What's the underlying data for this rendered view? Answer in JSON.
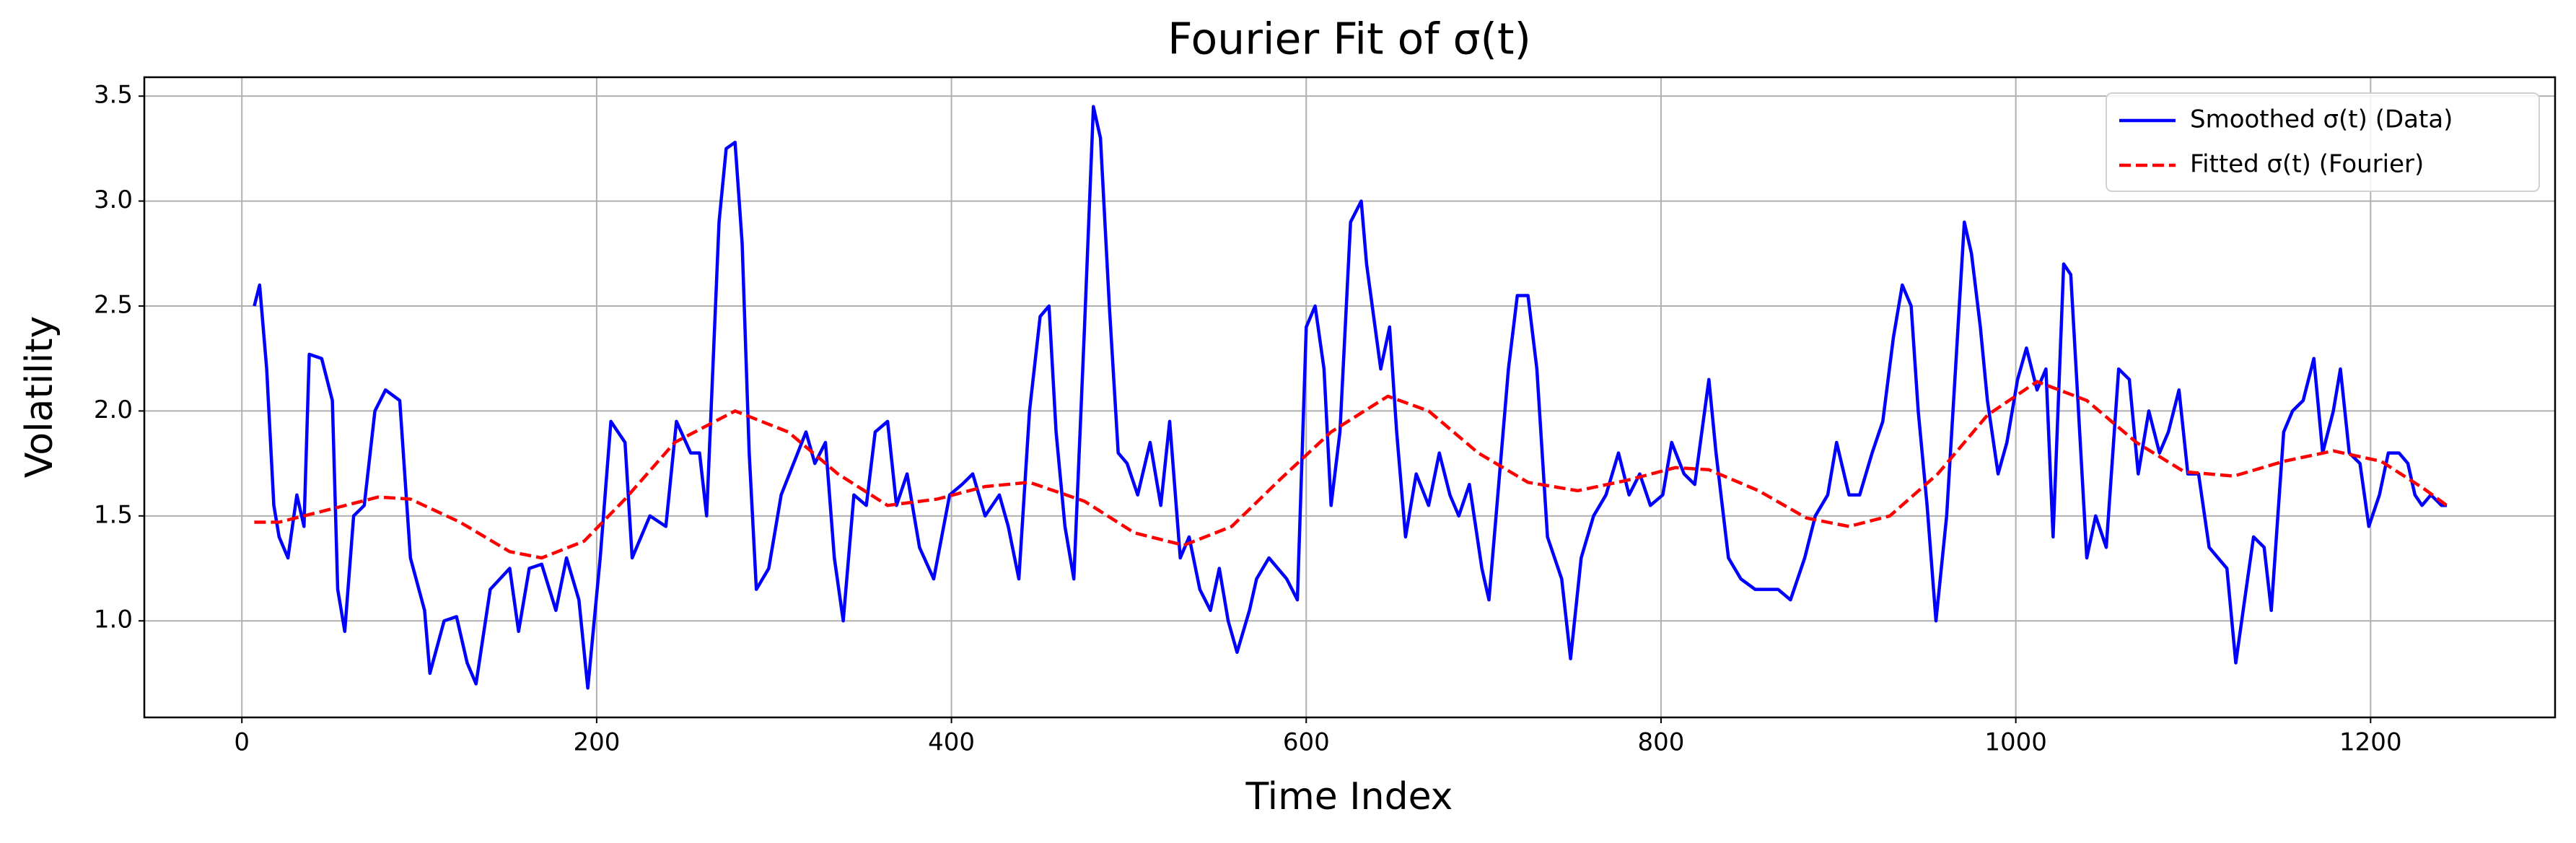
{
  "chart_data": {
    "type": "line",
    "title": "Fourier Fit of σ(t)",
    "xlabel": "Time Index",
    "ylabel": "Volatility",
    "xlim": [
      -55,
      1304
    ],
    "ylim": [
      0.54,
      3.59
    ],
    "xticks": [
      0,
      200,
      400,
      600,
      800,
      1000,
      1200
    ],
    "yticks": [
      {
        "value": 1.0,
        "label": "1.0"
      },
      1.5,
      {
        "value": 2.0,
        "label": "2.0"
      },
      2.5,
      {
        "value": 3.0,
        "label": "3.0"
      },
      3.5
    ],
    "grid": true,
    "legend": "upper right",
    "series": [
      {
        "name": "Smoothed σ(t) (Data)",
        "color": "#0000ff",
        "style": "solid",
        "x": [
          7,
          10,
          14,
          18,
          21,
          26,
          31,
          35,
          38,
          45,
          51,
          54,
          58,
          63,
          69,
          75,
          81,
          89,
          95,
          103,
          106,
          114,
          121,
          127,
          132,
          140,
          151,
          156,
          162,
          169,
          177,
          183,
          190,
          195,
          202,
          208,
          216,
          220,
          230,
          239,
          245,
          253,
          258,
          262,
          269,
          273,
          278,
          282,
          286,
          290,
          297,
          304,
          311,
          318,
          323,
          329,
          334,
          339,
          345,
          352,
          357,
          364,
          369,
          375,
          382,
          390,
          399,
          406,
          412,
          419,
          427,
          432,
          438,
          444,
          450,
          455,
          459,
          464,
          469,
          475,
          480,
          484,
          489,
          494,
          499,
          505,
          512,
          518,
          523,
          529,
          534,
          540,
          546,
          551,
          556,
          561,
          568,
          572,
          579,
          584,
          589,
          595,
          600,
          605,
          610,
          614,
          619,
          625,
          631,
          634,
          642,
          647,
          651,
          656,
          662,
          669,
          675,
          681,
          686,
          692,
          699,
          703,
          708,
          714,
          719,
          725,
          730,
          736,
          744,
          749,
          755,
          762,
          769,
          776,
          782,
          788,
          794,
          801,
          806,
          813,
          819,
          827,
          831,
          838,
          845,
          853,
          859,
          866,
          873,
          881,
          887,
          894,
          899,
          906,
          912,
          919,
          925,
          931,
          936,
          941,
          945,
          950,
          955,
          961,
          966,
          971,
          975,
          980,
          984,
          990,
          995,
          1001,
          1006,
          1012,
          1017,
          1021,
          1027,
          1031,
          1035,
          1040,
          1045,
          1051,
          1058,
          1064,
          1069,
          1075,
          1081,
          1086,
          1092,
          1097,
          1103,
          1109,
          1114,
          1119,
          1124,
          1129,
          1134,
          1140,
          1144,
          1151,
          1156,
          1162,
          1168,
          1173,
          1179,
          1183,
          1188,
          1194,
          1199,
          1205,
          1210,
          1216,
          1221,
          1225,
          1229,
          1234,
          1240,
          1243
        ],
        "values": [
          2.5,
          2.6,
          2.2,
          1.55,
          1.4,
          1.3,
          1.6,
          1.45,
          2.27,
          2.25,
          2.05,
          1.15,
          0.95,
          1.5,
          1.55,
          2.0,
          2.1,
          2.05,
          1.3,
          1.05,
          0.75,
          1.0,
          1.02,
          0.8,
          0.7,
          1.15,
          1.25,
          0.95,
          1.25,
          1.27,
          1.05,
          1.3,
          1.1,
          0.68,
          1.3,
          1.95,
          1.85,
          1.3,
          1.5,
          1.45,
          1.95,
          1.8,
          1.8,
          1.5,
          2.9,
          3.25,
          3.28,
          2.8,
          1.8,
          1.15,
          1.25,
          1.6,
          1.75,
          1.9,
          1.75,
          1.85,
          1.3,
          1.0,
          1.6,
          1.55,
          1.9,
          1.95,
          1.55,
          1.7,
          1.35,
          1.2,
          1.6,
          1.65,
          1.7,
          1.5,
          1.6,
          1.45,
          1.2,
          2.0,
          2.45,
          2.5,
          1.9,
          1.45,
          1.2,
          2.4,
          3.45,
          3.3,
          2.5,
          1.8,
          1.75,
          1.6,
          1.85,
          1.55,
          1.95,
          1.3,
          1.4,
          1.15,
          1.05,
          1.25,
          1.0,
          0.85,
          1.05,
          1.2,
          1.3,
          1.25,
          1.2,
          1.1,
          2.4,
          2.5,
          2.2,
          1.55,
          1.9,
          2.9,
          3.0,
          2.7,
          2.2,
          2.4,
          1.9,
          1.4,
          1.7,
          1.55,
          1.8,
          1.6,
          1.5,
          1.65,
          1.25,
          1.1,
          1.6,
          2.2,
          2.55,
          2.55,
          2.2,
          1.4,
          1.2,
          0.82,
          1.3,
          1.5,
          1.6,
          1.8,
          1.6,
          1.7,
          1.55,
          1.6,
          1.85,
          1.7,
          1.65,
          2.15,
          1.8,
          1.3,
          1.2,
          1.15,
          1.15,
          1.15,
          1.1,
          1.3,
          1.5,
          1.6,
          1.85,
          1.6,
          1.6,
          1.8,
          1.95,
          2.35,
          2.6,
          2.5,
          2.0,
          1.55,
          1.0,
          1.5,
          2.2,
          2.9,
          2.75,
          2.4,
          2.05,
          1.7,
          1.85,
          2.15,
          2.3,
          2.1,
          2.2,
          1.4,
          2.7,
          2.65,
          2.05,
          1.3,
          1.5,
          1.35,
          2.2,
          2.15,
          1.7,
          2.0,
          1.8,
          1.9,
          2.1,
          1.7,
          1.7,
          1.35,
          1.3,
          1.25,
          0.8,
          1.1,
          1.4,
          1.35,
          1.05,
          1.9,
          2.0,
          2.05,
          2.25,
          1.8,
          2.0,
          2.2,
          1.8,
          1.75,
          1.45,
          1.6,
          1.8,
          1.8,
          1.75,
          1.6,
          1.55,
          1.6,
          1.55,
          1.55
        ]
      },
      {
        "name": "Fitted σ(t) (Fourier)",
        "color": "#ff0000",
        "style": "dashed",
        "x": [
          7,
          21,
          49,
          77,
          95,
          123,
          151,
          169,
          193,
          216,
          244,
          278,
          308,
          336,
          364,
          392,
          419,
          444,
          475,
          503,
          531,
          558,
          586,
          614,
          646,
          669,
          697,
          725,
          753,
          781,
          808,
          827,
          855,
          882,
          906,
          929,
          956,
          984,
          1012,
          1040,
          1068,
          1095,
          1123,
          1151,
          1179,
          1206,
          1230,
          1243
        ],
        "values": [
          1.47,
          1.47,
          1.53,
          1.59,
          1.58,
          1.47,
          1.33,
          1.3,
          1.38,
          1.58,
          1.85,
          2.0,
          1.9,
          1.7,
          1.55,
          1.58,
          1.64,
          1.66,
          1.57,
          1.42,
          1.36,
          1.45,
          1.68,
          1.9,
          2.07,
          2.0,
          1.8,
          1.66,
          1.62,
          1.67,
          1.73,
          1.72,
          1.62,
          1.49,
          1.45,
          1.5,
          1.7,
          1.98,
          2.14,
          2.05,
          1.85,
          1.71,
          1.69,
          1.76,
          1.81,
          1.76,
          1.63,
          1.55
        ]
      }
    ]
  }
}
